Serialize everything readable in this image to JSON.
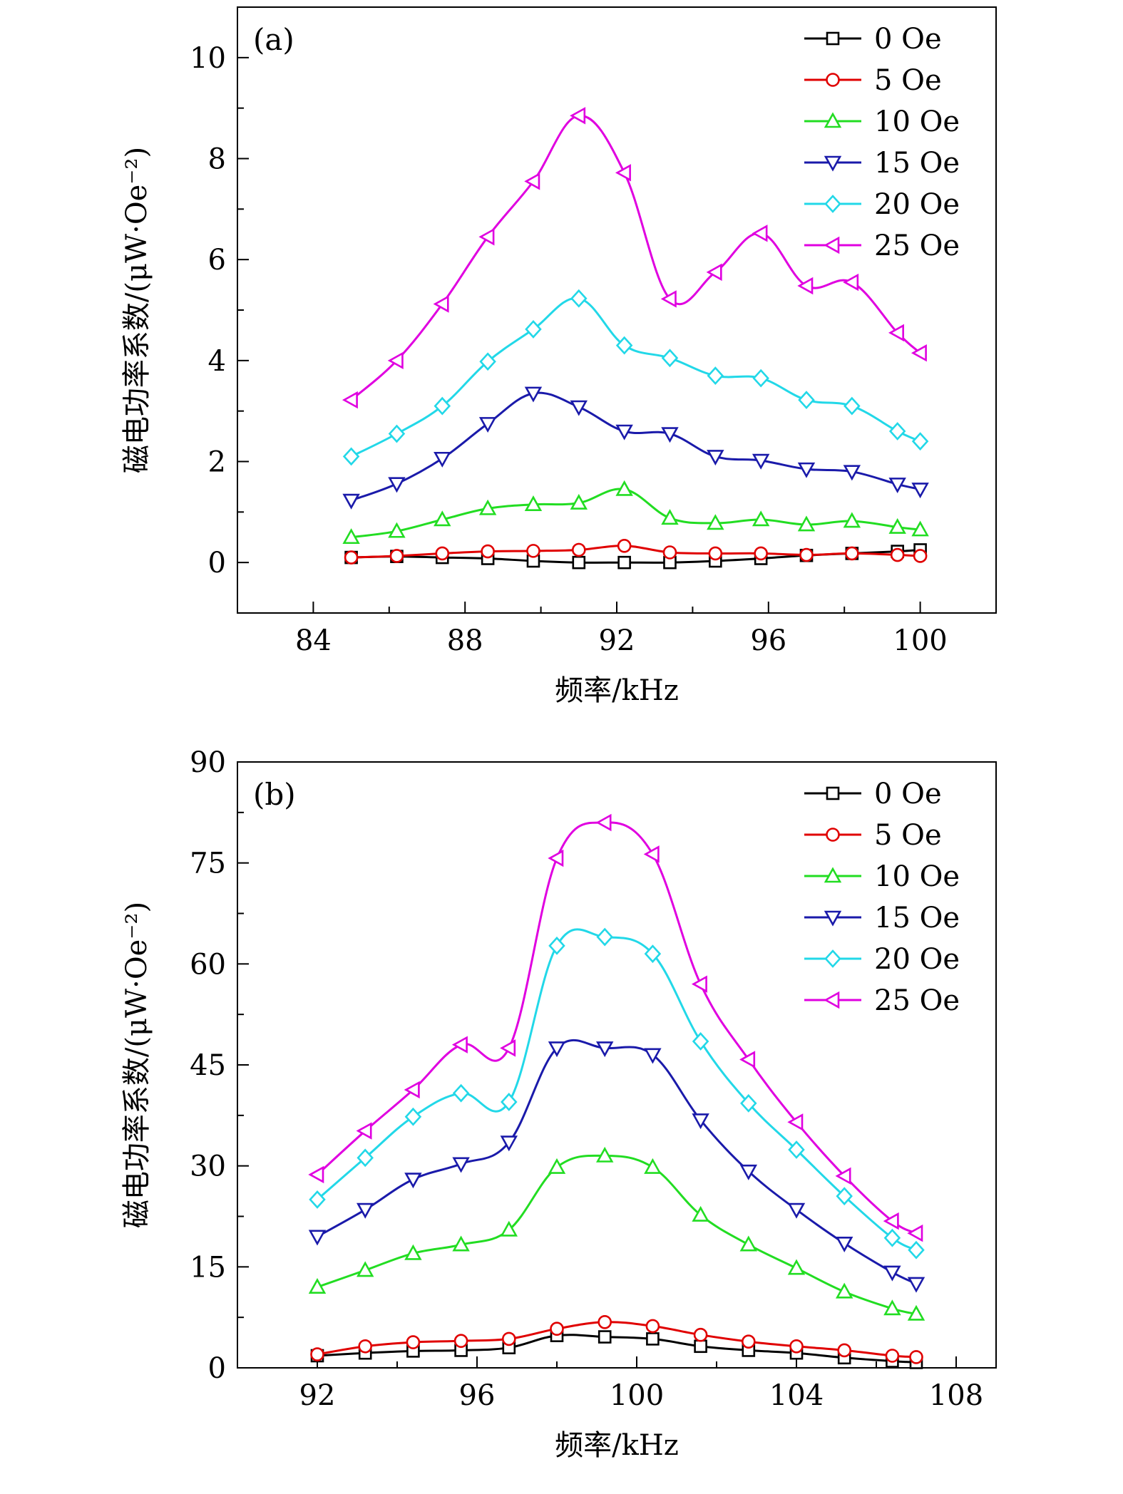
{
  "colors": {
    "0 Oe": "#000000",
    "5 Oe": "#e00000",
    "10 Oe": "#22dd22",
    "15 Oe": "#1a1aaa",
    "20 Oe": "#22d8e8",
    "25 Oe": "#e000e0"
  },
  "markers": {
    "0 Oe": "square",
    "5 Oe": "circle",
    "10 Oe": "triangle-up",
    "15 Oe": "triangle-down",
    "20 Oe": "diamond",
    "25 Oe": "triangle-left"
  },
  "chart_data": [
    {
      "type": "line",
      "panel_label": "(a)",
      "xlabel": "频率/kHz",
      "ylabel": "磁电功率系数/(μW·Oe⁻²)",
      "xlim": [
        82,
        102
      ],
      "ylim": [
        -1,
        11
      ],
      "xticks": [
        "84",
        "88",
        "92",
        "96",
        "100"
      ],
      "yticks": [
        "0",
        "2",
        "4",
        "6",
        "8",
        "10"
      ],
      "legend_position": "top-right",
      "x": [
        85,
        86.2,
        87.4,
        88.6,
        89.8,
        91.0,
        92.2,
        93.4,
        94.6,
        95.8,
        97.0,
        98.2,
        99.4,
        100
      ],
      "series": [
        {
          "name": "0 Oe",
          "values": [
            0.1,
            0.12,
            0.1,
            0.08,
            0.03,
            0.0,
            0.0,
            0.0,
            0.03,
            0.08,
            0.14,
            0.18,
            0.22,
            0.25
          ]
        },
        {
          "name": "5 Oe",
          "values": [
            0.1,
            0.13,
            0.18,
            0.22,
            0.23,
            0.25,
            0.33,
            0.2,
            0.18,
            0.18,
            0.15,
            0.18,
            0.15,
            0.13
          ]
        },
        {
          "name": "10 Oe",
          "values": [
            0.5,
            0.62,
            0.85,
            1.07,
            1.15,
            1.18,
            1.45,
            0.88,
            0.78,
            0.85,
            0.75,
            0.82,
            0.7,
            0.65
          ]
        },
        {
          "name": "15 Oe",
          "values": [
            1.23,
            1.56,
            2.06,
            2.75,
            3.35,
            3.08,
            2.6,
            2.55,
            2.1,
            2.02,
            1.85,
            1.8,
            1.55,
            1.45
          ]
        },
        {
          "name": "20 Oe",
          "values": [
            2.1,
            2.55,
            3.1,
            3.98,
            4.62,
            5.23,
            4.3,
            4.05,
            3.7,
            3.65,
            3.22,
            3.1,
            2.6,
            2.4
          ]
        },
        {
          "name": "25 Oe",
          "values": [
            3.22,
            4.0,
            5.12,
            6.45,
            7.55,
            8.85,
            7.72,
            5.22,
            5.75,
            6.52,
            5.48,
            5.55,
            4.55,
            4.15
          ]
        }
      ]
    },
    {
      "type": "line",
      "panel_label": "(b)",
      "xlabel": "频率/kHz",
      "ylabel": "磁电功率系数/(μW·Oe⁻²)",
      "xlim": [
        90,
        109
      ],
      "ylim": [
        0,
        90
      ],
      "xticks": [
        "92",
        "96",
        "100",
        "104",
        "108"
      ],
      "yticks": [
        "0",
        "15",
        "30",
        "45",
        "60",
        "75",
        "90"
      ],
      "legend_position": "top-right",
      "x": [
        92,
        93.2,
        94.4,
        95.6,
        96.8,
        98.0,
        99.2,
        100.4,
        101.6,
        102.8,
        104.0,
        105.2,
        106.4,
        107
      ],
      "series": [
        {
          "name": "0 Oe",
          "values": [
            1.8,
            2.2,
            2.5,
            2.6,
            3.0,
            4.8,
            4.6,
            4.3,
            3.2,
            2.6,
            2.2,
            1.5,
            1.0,
            0.8
          ]
        },
        {
          "name": "5 Oe",
          "values": [
            2.0,
            3.2,
            3.8,
            4.0,
            4.3,
            5.8,
            6.8,
            6.2,
            4.9,
            3.9,
            3.2,
            2.6,
            1.8,
            1.6
          ]
        },
        {
          "name": "10 Oe",
          "values": [
            12.0,
            14.5,
            17.0,
            18.3,
            20.5,
            29.8,
            31.5,
            29.8,
            22.7,
            18.3,
            14.8,
            11.3,
            8.8,
            8.0
          ]
        },
        {
          "name": "15 Oe",
          "values": [
            19.5,
            23.5,
            28.0,
            30.3,
            33.5,
            47.5,
            47.5,
            46.5,
            36.8,
            29.2,
            23.5,
            18.5,
            14.2,
            12.5
          ]
        },
        {
          "name": "20 Oe",
          "values": [
            25.0,
            31.2,
            37.3,
            40.8,
            39.5,
            62.7,
            64.0,
            61.5,
            48.5,
            39.3,
            32.4,
            25.5,
            19.3,
            17.5
          ]
        },
        {
          "name": "25 Oe",
          "values": [
            28.7,
            35.2,
            41.3,
            48.0,
            47.5,
            75.7,
            81.0,
            76.3,
            57.0,
            45.8,
            36.5,
            28.5,
            21.8,
            20.0
          ]
        }
      ]
    }
  ]
}
